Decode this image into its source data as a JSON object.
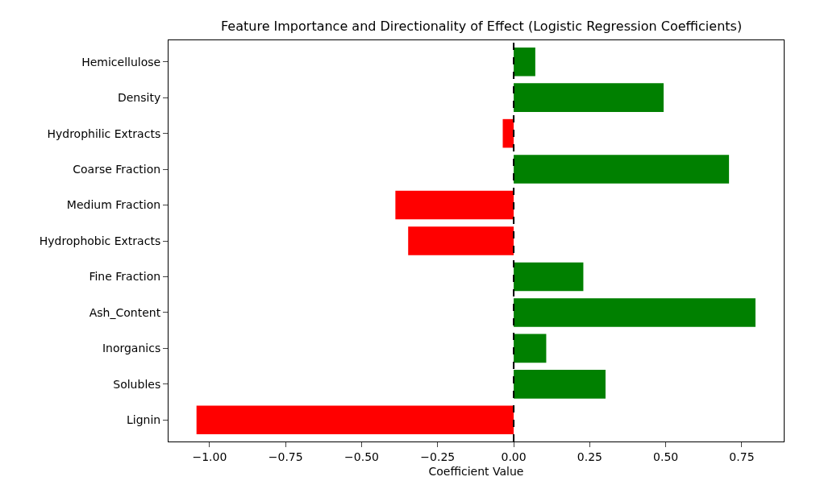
{
  "chart_data": {
    "type": "bar",
    "orientation": "horizontal",
    "title": "Feature Importance and Directionality of Effect (Logistic Regression Coefficients)",
    "xlabel": "Coefficient Value",
    "categories": [
      "Hemicellulose",
      "Density",
      "Hydrophilic Extracts",
      "Coarse Fraction",
      "Medium Fraction",
      "Hydrophobic Extracts",
      "Fine Fraction",
      "Ash_Content",
      "Inorganics",
      "Solubles",
      "Lignin"
    ],
    "values": [
      0.071,
      0.493,
      -0.036,
      0.708,
      -0.389,
      -0.347,
      0.229,
      0.795,
      0.107,
      0.302,
      -1.043
    ],
    "colors": [
      "#008000",
      "#008000",
      "#ff0000",
      "#008000",
      "#ff0000",
      "#ff0000",
      "#008000",
      "#008000",
      "#008000",
      "#008000",
      "#ff0000"
    ],
    "xlim": [
      -1.135,
      0.888
    ],
    "xticks": [
      {
        "value": -1,
        "label": "−1.00"
      },
      {
        "value": -0.75,
        "label": "−0.75"
      },
      {
        "value": -0.5,
        "label": "−0.50"
      },
      {
        "value": -0.25,
        "label": "−0.25"
      },
      {
        "value": 0,
        "label": "0.00"
      },
      {
        "value": 0.25,
        "label": "0.25"
      },
      {
        "value": 0.5,
        "label": "0.50"
      },
      {
        "value": 0.75,
        "label": "0.75"
      }
    ],
    "ref_lines": [
      {
        "axis": "x",
        "value": 0,
        "color": "#000000",
        "line_style": "dashed"
      }
    ],
    "grid": false
  }
}
